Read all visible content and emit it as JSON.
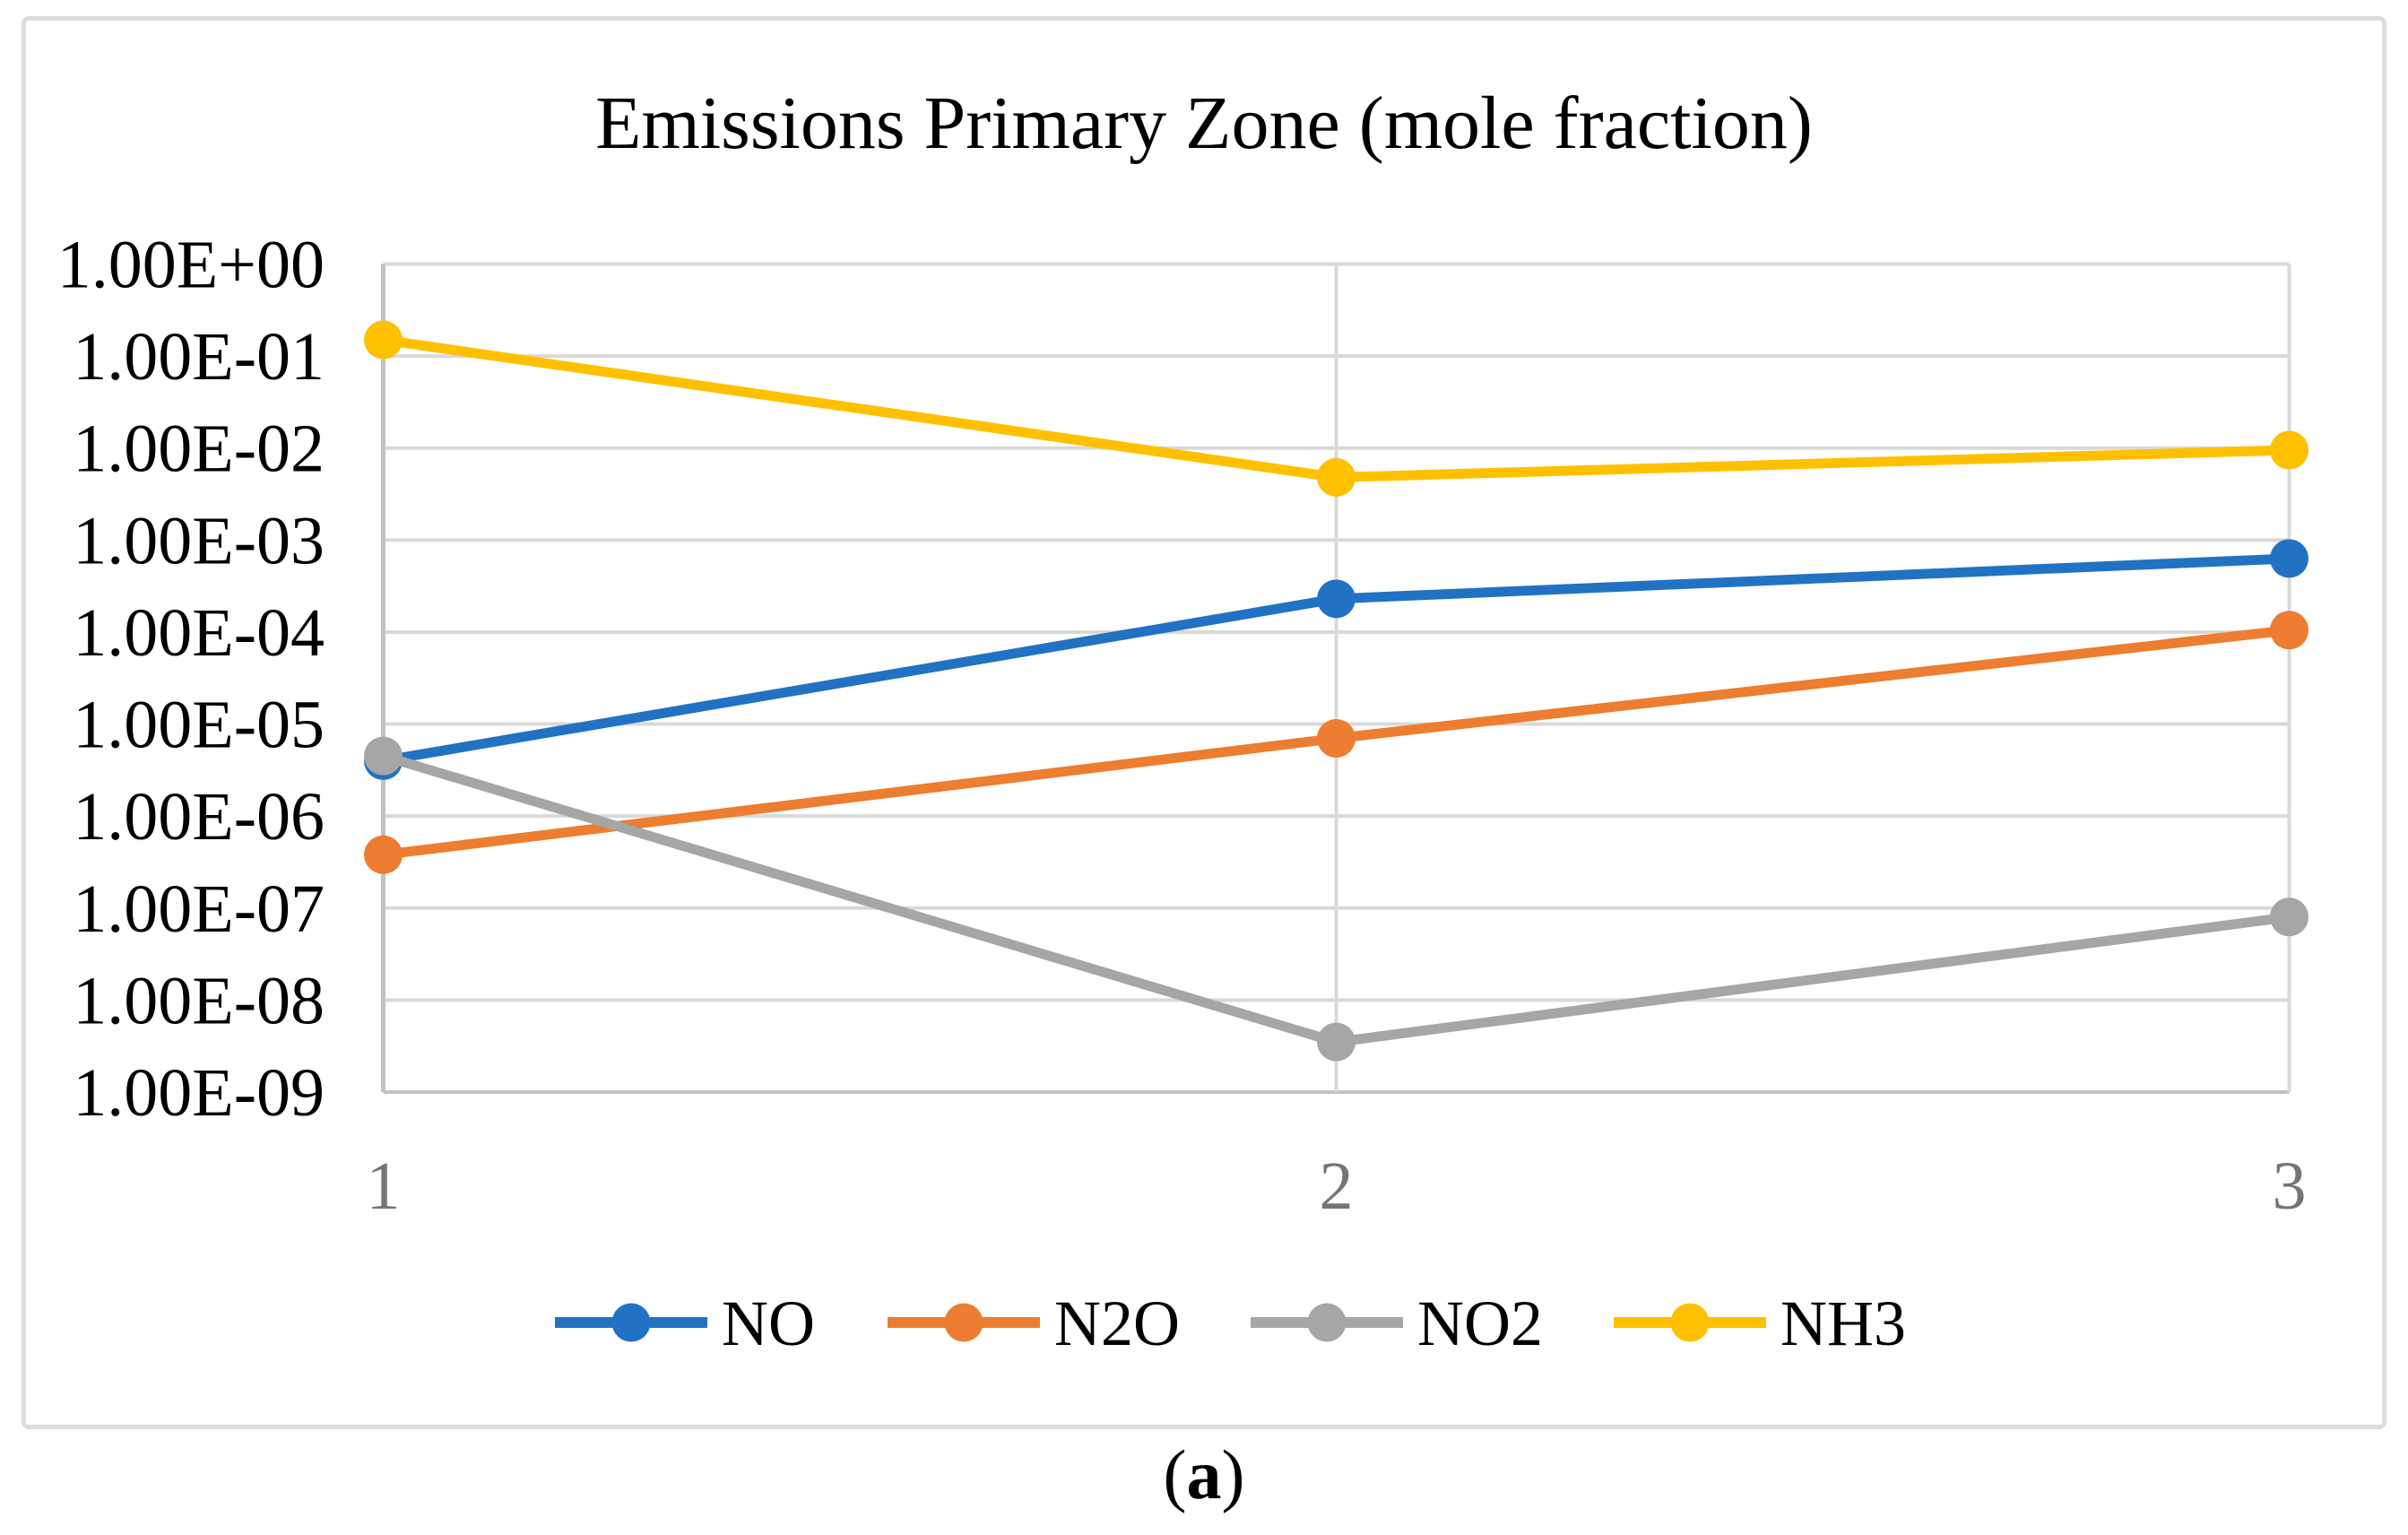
{
  "figure": {
    "caption_open": "(",
    "caption_letter": "a",
    "caption_close": ")"
  },
  "chart": {
    "title": "Emissions Primary Zone (mole fraction)"
  },
  "chart_data": {
    "type": "line",
    "title": "Emissions Primary Zone (mole fraction)",
    "x": [
      1,
      2,
      3
    ],
    "x_tick_labels": [
      "1",
      "2",
      "3"
    ],
    "y_scale": "log",
    "ylim": [
      1e-09,
      1
    ],
    "y_tick_labels": [
      "1.00E+00",
      "1.00E-01",
      "1.00E-02",
      "1.00E-03",
      "1.00E-04",
      "1.00E-05",
      "1.00E-06",
      "1.00E-07",
      "1.00E-08",
      "1.00E-09"
    ],
    "grid": true,
    "legend_position": "bottom",
    "series": [
      {
        "name": "NO",
        "color": "#2272C3",
        "values": [
          4e-06,
          0.00023,
          0.00063
        ]
      },
      {
        "name": "N2O",
        "color": "#ED7D31",
        "values": [
          3.8e-07,
          7e-06,
          0.000105
        ]
      },
      {
        "name": "NO2",
        "color": "#A6A6A6",
        "values": [
          4.5e-06,
          3.5e-09,
          8e-08
        ]
      },
      {
        "name": "NH3",
        "color": "#FFC000",
        "values": [
          0.15,
          0.0048,
          0.0095
        ]
      }
    ],
    "axis_colors": {
      "gridline": "#D9D9D9",
      "axis_line": "#C2C2C2",
      "x_tick_label": "#757575",
      "y_tick_label": "#000000"
    }
  }
}
